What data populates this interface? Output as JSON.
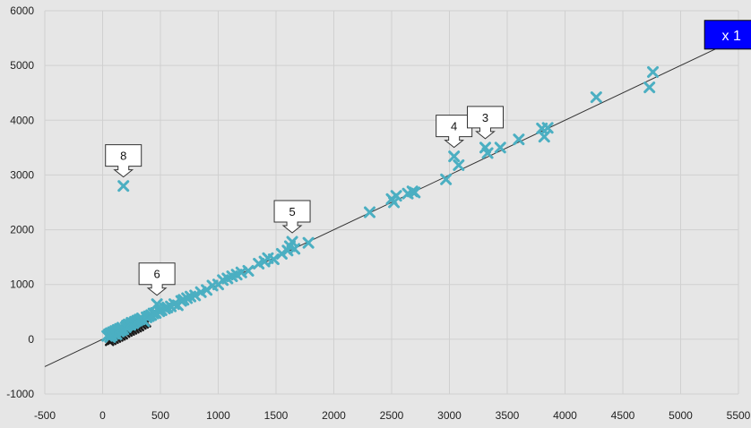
{
  "chart_data": {
    "type": "scatter",
    "title": "",
    "xlabel": "",
    "ylabel": "",
    "xlim": [
      -500,
      5500
    ],
    "ylim": [
      -1000,
      6000
    ],
    "x_ticks": [
      "-500",
      "0",
      "500",
      "1000",
      "1500",
      "2000",
      "2500",
      "3000",
      "3500",
      "4000",
      "4500",
      "5000",
      "5500"
    ],
    "y_ticks": [
      "-1000",
      "0",
      "1000",
      "2000",
      "3000",
      "4000",
      "5000",
      "6000"
    ],
    "grid": true,
    "marker_color": "#4bafc2",
    "dark_marker_color": "#1a1a1a",
    "trend_line": {
      "slope": 1.0,
      "intercept": 0,
      "label": "x 1",
      "badge_color": "#0000ff"
    },
    "points": [
      [
        40,
        60
      ],
      [
        55,
        90
      ],
      [
        65,
        40
      ],
      [
        70,
        110
      ],
      [
        80,
        70
      ],
      [
        90,
        130
      ],
      [
        100,
        100
      ],
      [
        110,
        150
      ],
      [
        120,
        90
      ],
      [
        130,
        170
      ],
      [
        140,
        140
      ],
      [
        150,
        190
      ],
      [
        160,
        160
      ],
      [
        170,
        210
      ],
      [
        180,
        180
      ],
      [
        200,
        220
      ],
      [
        210,
        250
      ],
      [
        225,
        270
      ],
      [
        240,
        260
      ],
      [
        250,
        300
      ],
      [
        265,
        290
      ],
      [
        280,
        320
      ],
      [
        300,
        340
      ],
      [
        320,
        360
      ],
      [
        340,
        380
      ],
      [
        360,
        330
      ],
      [
        380,
        400
      ],
      [
        400,
        420
      ],
      [
        420,
        440
      ],
      [
        440,
        470
      ],
      [
        460,
        480
      ],
      [
        470,
        640
      ],
      [
        490,
        510
      ],
      [
        510,
        530
      ],
      [
        540,
        560
      ],
      [
        560,
        580
      ],
      [
        590,
        600
      ],
      [
        620,
        640
      ],
      [
        650,
        620
      ],
      [
        680,
        700
      ],
      [
        700,
        720
      ],
      [
        730,
        750
      ],
      [
        760,
        780
      ],
      [
        800,
        800
      ],
      [
        850,
        860
      ],
      [
        900,
        900
      ],
      [
        950,
        980
      ],
      [
        1000,
        1000
      ],
      [
        1040,
        1080
      ],
      [
        1080,
        1110
      ],
      [
        1120,
        1150
      ],
      [
        1160,
        1180
      ],
      [
        1200,
        1220
      ],
      [
        1260,
        1250
      ],
      [
        1350,
        1380
      ],
      [
        1400,
        1420
      ],
      [
        1430,
        1480
      ],
      [
        1480,
        1460
      ],
      [
        1550,
        1560
      ],
      [
        1600,
        1620
      ],
      [
        1620,
        1700
      ],
      [
        1640,
        1780
      ],
      [
        1660,
        1650
      ],
      [
        1780,
        1760
      ],
      [
        2310,
        2320
      ],
      [
        2500,
        2560
      ],
      [
        2520,
        2500
      ],
      [
        2540,
        2620
      ],
      [
        2640,
        2660
      ],
      [
        2680,
        2700
      ],
      [
        2700,
        2680
      ],
      [
        2970,
        2920
      ],
      [
        3040,
        3340
      ],
      [
        3080,
        3180
      ],
      [
        3310,
        3500
      ],
      [
        3330,
        3400
      ],
      [
        3440,
        3500
      ],
      [
        3600,
        3650
      ],
      [
        3800,
        3850
      ],
      [
        3820,
        3700
      ],
      [
        3850,
        3860
      ],
      [
        4270,
        4420
      ],
      [
        4730,
        4600
      ],
      [
        4760,
        4880
      ],
      [
        180,
        2800
      ]
    ],
    "dark_points": [
      [
        60,
        -40
      ],
      [
        80,
        -20
      ],
      [
        100,
        0
      ],
      [
        120,
        20
      ],
      [
        140,
        40
      ],
      [
        160,
        60
      ],
      [
        180,
        80
      ],
      [
        200,
        110
      ],
      [
        220,
        130
      ],
      [
        240,
        150
      ],
      [
        260,
        170
      ],
      [
        280,
        190
      ],
      [
        300,
        210
      ],
      [
        320,
        230
      ],
      [
        340,
        260
      ],
      [
        360,
        280
      ],
      [
        380,
        300
      ]
    ],
    "annotations": [
      {
        "label": "8",
        "x": 180,
        "y": 2800
      },
      {
        "label": "6",
        "x": 470,
        "y": 640
      },
      {
        "label": "5",
        "x": 1640,
        "y": 1780
      },
      {
        "label": "4",
        "x": 3040,
        "y": 3340
      },
      {
        "label": "3",
        "x": 3310,
        "y": 3500
      }
    ]
  }
}
